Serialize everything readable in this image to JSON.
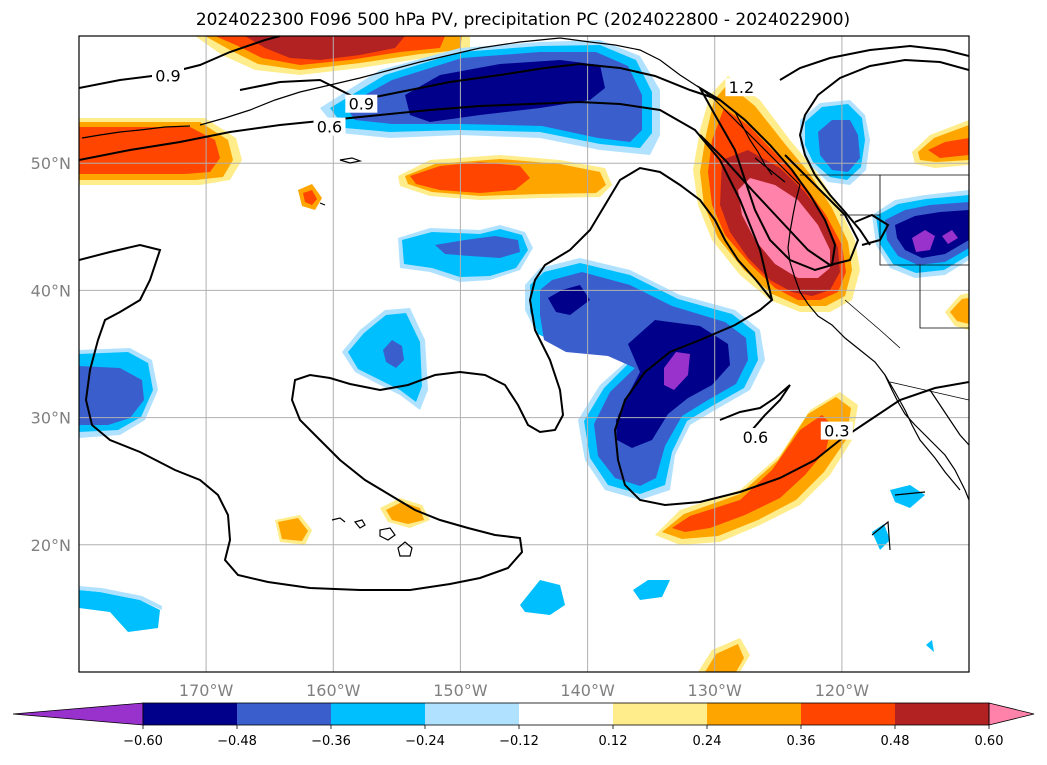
{
  "title": "2024022300 F096 500 hPa PV, precipitation PC (2024022800 - 2024022900)",
  "map": {
    "lon_range": [
      -180,
      -110
    ],
    "lat_range": [
      10,
      60
    ],
    "lon_labels": [
      {
        "lon": -170,
        "text": "170°W"
      },
      {
        "lon": -160,
        "text": "160°W"
      },
      {
        "lon": -150,
        "text": "150°W"
      },
      {
        "lon": -140,
        "text": "140°W"
      },
      {
        "lon": -130,
        "text": "130°W"
      },
      {
        "lon": -120,
        "text": "120°W"
      }
    ],
    "lat_labels": [
      {
        "lat": 50,
        "text": "50°N"
      },
      {
        "lat": 40,
        "text": "40°N"
      },
      {
        "lat": 30,
        "text": "30°N"
      },
      {
        "lat": 20,
        "text": "20°N"
      }
    ],
    "gridlines": true
  },
  "pv_contour_labels": [
    {
      "text": "0.9",
      "lon": -173.0,
      "lat": 56.8
    },
    {
      "text": "0.9",
      "lon": -157.8,
      "lat": 54.6
    },
    {
      "text": "0.6",
      "lon": -160.3,
      "lat": 52.8
    },
    {
      "text": "1.2",
      "lon": -127.9,
      "lat": 55.9
    },
    {
      "text": "0.6",
      "lon": -126.8,
      "lat": 28.4
    },
    {
      "text": "0.3",
      "lon": -120.4,
      "lat": 28.9
    }
  ],
  "colorbar": {
    "extend": "both",
    "levels": [
      -0.72,
      -0.6,
      -0.48,
      -0.36,
      -0.24,
      -0.12,
      0.12,
      0.24,
      0.36,
      0.48,
      0.6,
      0.72
    ],
    "colors": [
      "#9932CC",
      "#00008B",
      "#3A5FCD",
      "#00BFFF",
      "#B0E2FF",
      "#FFFFFF",
      "#FFEC8B",
      "#FFA500",
      "#FF4500",
      "#B22222",
      "#FF82AB"
    ],
    "tick_labels": [
      "−0.60",
      "−0.48",
      "−0.36",
      "−0.24",
      "−0.12",
      "0.12",
      "0.24",
      "0.36",
      "0.48",
      "0.60"
    ]
  },
  "fill_colors": {
    "purple": "#9932CC",
    "navy": "#00008B",
    "blue": "#3A5FCD",
    "sky": "#00BFFF",
    "light_blue": "#B0E2FF",
    "yellow": "#FFEC8B",
    "orange": "#FFA500",
    "red_orange": "#FF4500",
    "dark_red": "#B22222",
    "pink": "#FF82AB"
  }
}
